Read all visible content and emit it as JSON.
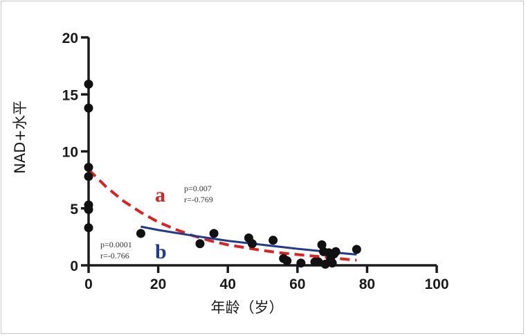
{
  "chart_data": {
    "type": "scatter",
    "xlabel": "年龄（岁）",
    "ylabel": "NAD+水平",
    "xlim": [
      0,
      100
    ],
    "ylim": [
      0,
      20
    ],
    "xticks": [
      0,
      20,
      40,
      60,
      80,
      100
    ],
    "yticks": [
      0,
      5,
      10,
      15,
      20
    ],
    "grid": false,
    "points": [
      {
        "x": 0,
        "y": 15.9
      },
      {
        "x": 0,
        "y": 13.8
      },
      {
        "x": 0,
        "y": 8.6
      },
      {
        "x": 0,
        "y": 7.8
      },
      {
        "x": 0,
        "y": 5.3
      },
      {
        "x": 0,
        "y": 4.9
      },
      {
        "x": 0,
        "y": 3.3
      },
      {
        "x": 15,
        "y": 2.8
      },
      {
        "x": 32,
        "y": 1.9
      },
      {
        "x": 36,
        "y": 2.8
      },
      {
        "x": 46,
        "y": 2.4
      },
      {
        "x": 47,
        "y": 1.9
      },
      {
        "x": 53,
        "y": 2.2
      },
      {
        "x": 56,
        "y": 0.6
      },
      {
        "x": 57,
        "y": 0.4
      },
      {
        "x": 61,
        "y": 0.2
      },
      {
        "x": 65,
        "y": 0.3
      },
      {
        "x": 66,
        "y": 0.3
      },
      {
        "x": 67,
        "y": 1.8
      },
      {
        "x": 67.5,
        "y": 1.2
      },
      {
        "x": 68,
        "y": 0.1
      },
      {
        "x": 69,
        "y": 1.1
      },
      {
        "x": 69.5,
        "y": 0.5
      },
      {
        "x": 70,
        "y": 0.2
      },
      {
        "x": 70.5,
        "y": 1.0
      },
      {
        "x": 71,
        "y": 1.2
      },
      {
        "x": 77,
        "y": 1.4
      }
    ],
    "curves": [
      {
        "label": "a",
        "style": "dashed",
        "color": "#e02020",
        "p_text": "p=0.007",
        "r_text": "r=-0.769",
        "x": [
          0,
          5,
          10,
          15,
          20,
          25,
          30,
          35,
          40,
          45,
          50,
          55,
          60,
          65,
          70,
          75,
          77
        ],
        "y": [
          8.4,
          6.9,
          5.65,
          4.65,
          3.8,
          3.15,
          2.6,
          2.15,
          1.8,
          1.55,
          1.3,
          1.1,
          0.95,
          0.8,
          0.65,
          0.5,
          0.45
        ]
      },
      {
        "label": "b",
        "style": "solid",
        "color": "#1f3a93",
        "p_text": "p=0.0001",
        "r_text": "r=-0.766",
        "x": [
          15,
          20,
          30,
          40,
          50,
          60,
          70,
          77
        ],
        "y": [
          3.4,
          3.1,
          2.6,
          2.15,
          1.8,
          1.45,
          1.15,
          0.95
        ]
      }
    ]
  }
}
